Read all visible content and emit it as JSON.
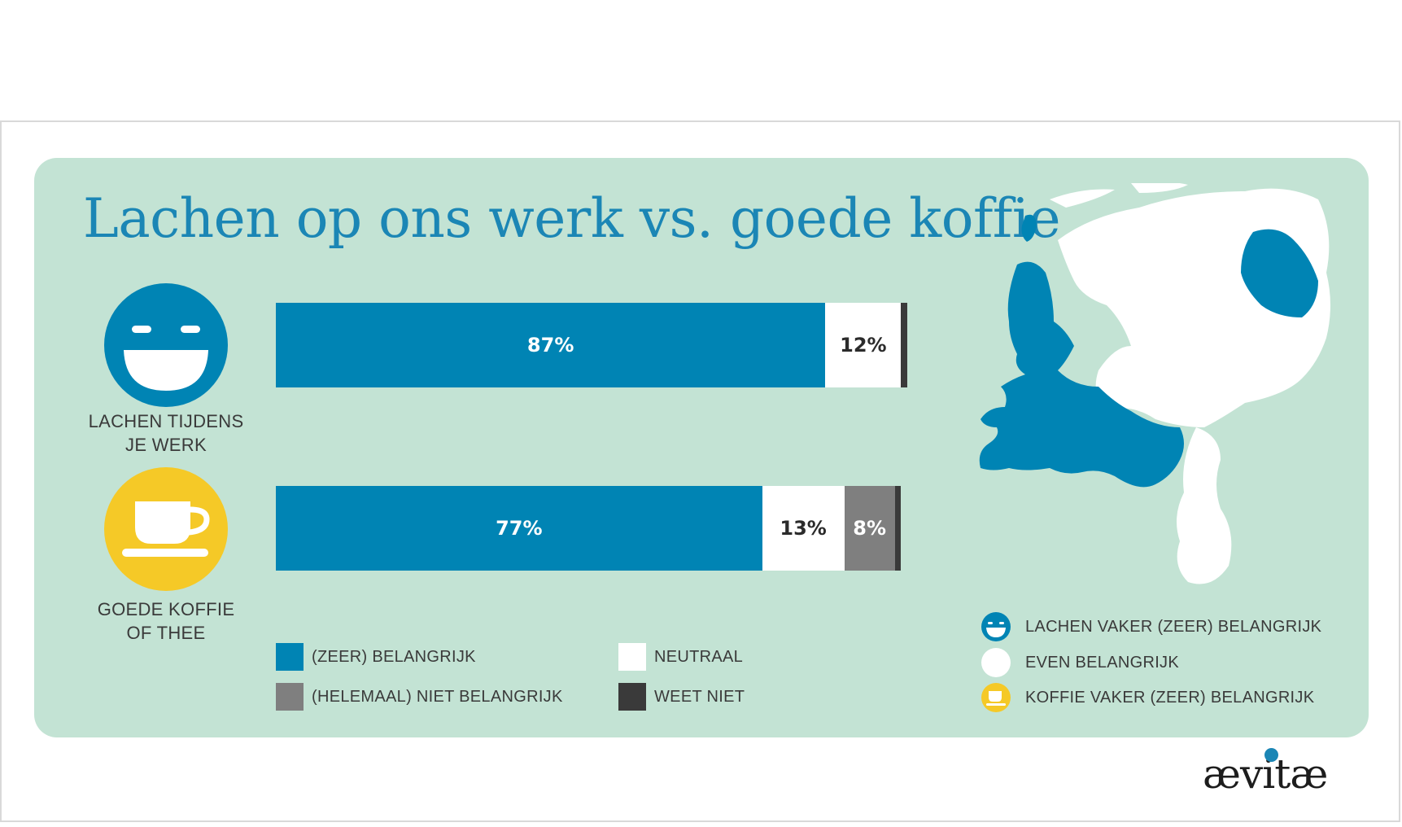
{
  "title": "Lachen op ons werk vs. goede koffie",
  "colors": {
    "panel": "#c3e3d4",
    "blue": "#0084b4",
    "white": "#ffffff",
    "grey": "#7f7f7f",
    "dark": "#3a3a3a",
    "yellow": "#f5c927"
  },
  "icons": {
    "laugh": {
      "name": "laughing-face-icon",
      "label_line1": "LACHEN TIJDENS",
      "label_line2": "JE WERK"
    },
    "coffee": {
      "name": "coffee-cup-icon",
      "label_line1": "GOEDE KOFFIE",
      "label_line2": "OF THEE"
    }
  },
  "chart_data": {
    "type": "bar",
    "orientation": "horizontal",
    "stacked": true,
    "categories": [
      "LACHEN TIJDENS JE WERK",
      "GOEDE KOFFIE OF THEE"
    ],
    "series": [
      {
        "name": "(ZEER) BELANGRIJK",
        "values": [
          87,
          77
        ],
        "labels": [
          "87%",
          "77%"
        ]
      },
      {
        "name": "NEUTRAAL",
        "values": [
          12,
          13
        ],
        "labels": [
          "12%",
          "13%"
        ]
      },
      {
        "name": "(HELEMAAL) NIET BELANGRIJK",
        "values": [
          0,
          8
        ],
        "labels": [
          "",
          "8%"
        ]
      },
      {
        "name": "WEET NIET",
        "values": [
          1,
          1
        ],
        "labels": [
          "",
          ""
        ]
      }
    ],
    "xlim": [
      0,
      101
    ],
    "legend": [
      "(ZEER) BELANGRIJK",
      "NEUTRAAL",
      "(HELEMAAL) NIET BELANGRIJK",
      "WEET NIET"
    ],
    "legend_position": "bottom"
  },
  "map_legend": [
    {
      "icon": "laughing-face-icon",
      "label": "LACHEN VAKER (ZEER) BELANGRIJK"
    },
    {
      "icon": "white-circle-icon",
      "label": "EVEN BELANGRIJK"
    },
    {
      "icon": "coffee-cup-icon",
      "label": "KOFFIE VAKER (ZEER) BELANGRIJK"
    }
  ],
  "logo": "ævitæ"
}
